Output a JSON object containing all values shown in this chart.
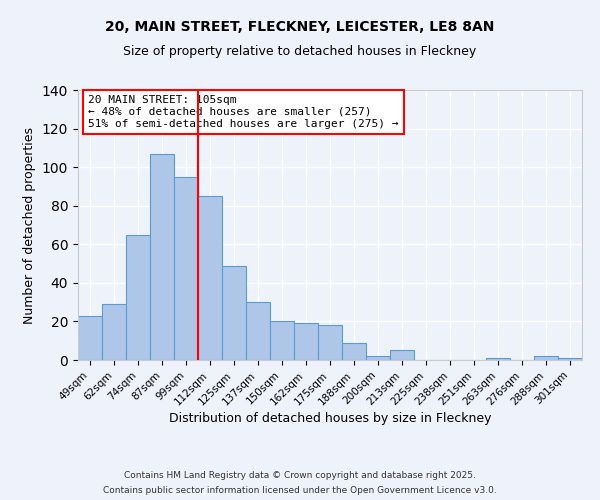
{
  "title1": "20, MAIN STREET, FLECKNEY, LEICESTER, LE8 8AN",
  "title2": "Size of property relative to detached houses in Fleckney",
  "xlabel": "Distribution of detached houses by size in Fleckney",
  "ylabel": "Number of detached properties",
  "categories": [
    "49sqm",
    "62sqm",
    "74sqm",
    "87sqm",
    "99sqm",
    "112sqm",
    "125sqm",
    "137sqm",
    "150sqm",
    "162sqm",
    "175sqm",
    "188sqm",
    "200sqm",
    "213sqm",
    "225sqm",
    "238sqm",
    "251sqm",
    "263sqm",
    "276sqm",
    "288sqm",
    "301sqm"
  ],
  "values": [
    23,
    29,
    65,
    107,
    95,
    85,
    49,
    30,
    20,
    19,
    18,
    9,
    2,
    5,
    0,
    0,
    0,
    1,
    0,
    2,
    1
  ],
  "bar_color": "#aec6e8",
  "bar_edge_color": "#5b9bd5",
  "vline_x": 4.5,
  "vline_color": "red",
  "ylim": [
    0,
    140
  ],
  "yticks": [
    0,
    20,
    40,
    60,
    80,
    100,
    120,
    140
  ],
  "annotation_title": "20 MAIN STREET: 105sqm",
  "annotation_line1": "← 48% of detached houses are smaller (257)",
  "annotation_line2": "51% of semi-detached houses are larger (275) →",
  "annotation_box_color": "white",
  "annotation_box_edge": "red",
  "footer1": "Contains HM Land Registry data © Crown copyright and database right 2025.",
  "footer2": "Contains public sector information licensed under the Open Government Licence v3.0.",
  "background_color": "#eef2fa",
  "grid_color": "white"
}
